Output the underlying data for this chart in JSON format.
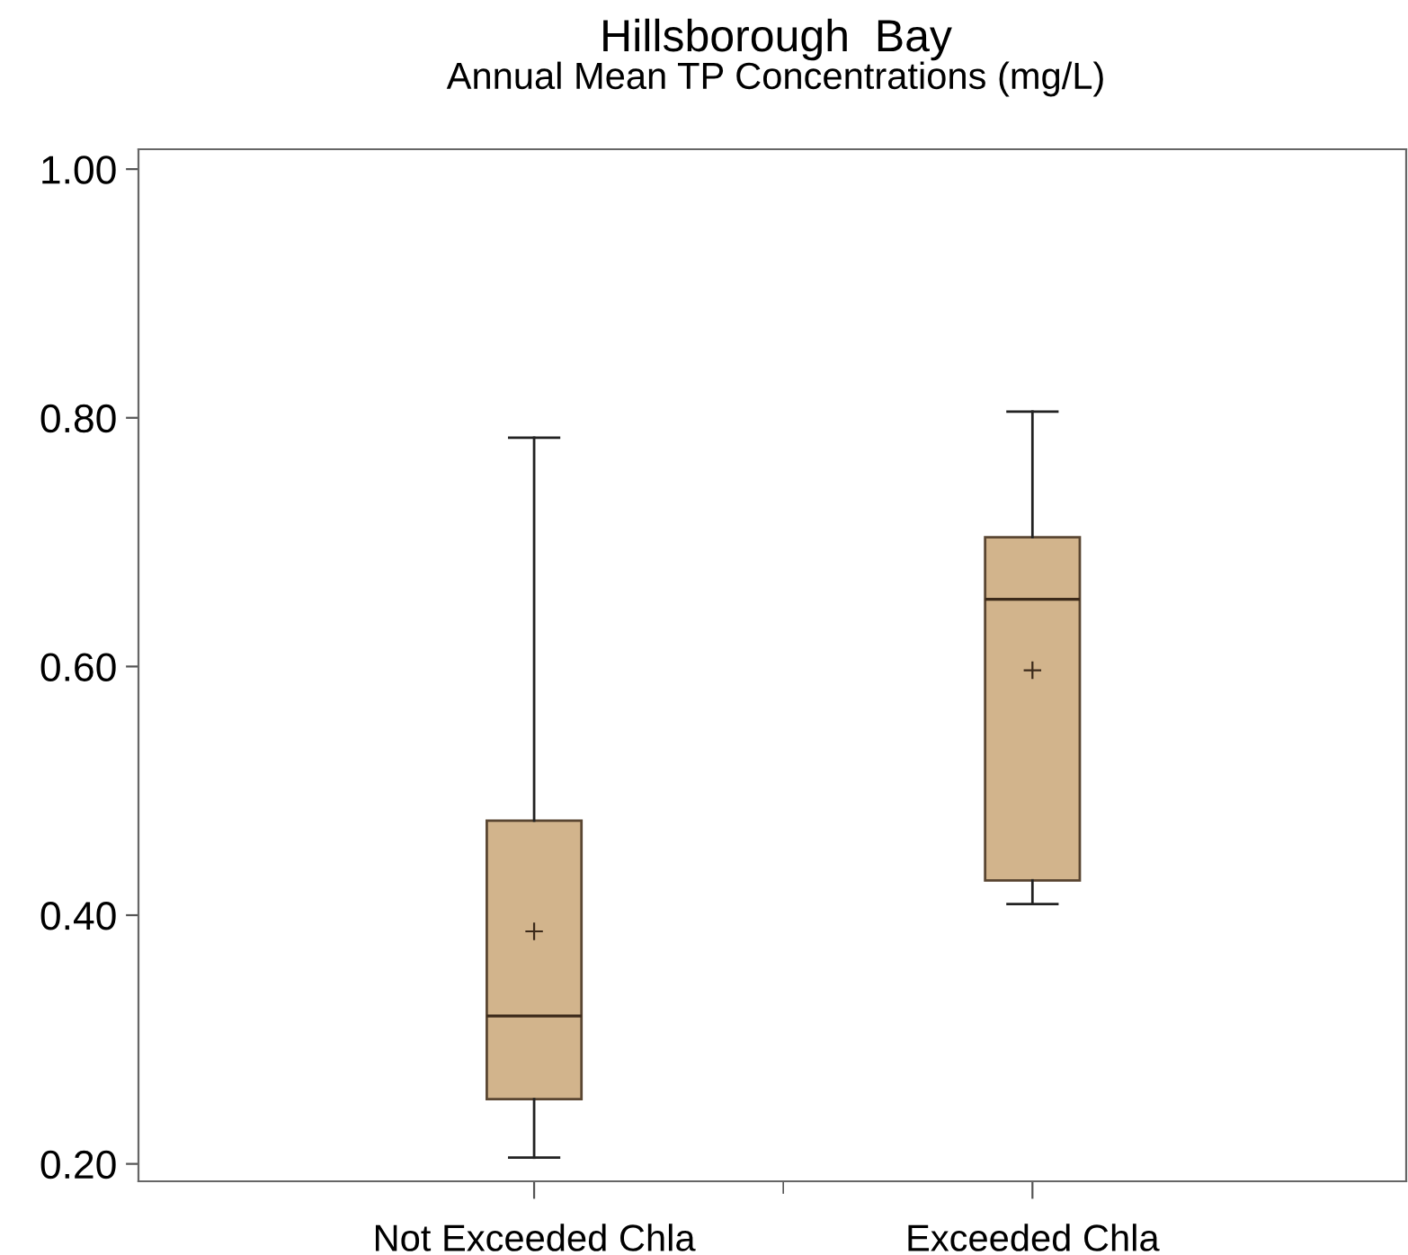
{
  "chart_data": {
    "type": "box",
    "title": "Hillsborough  Bay",
    "subtitle": "Annual Mean TP Concentrations (mg/L)",
    "categories": [
      "Not Exceeded Chla",
      "Exceeded Chla"
    ],
    "series": [
      {
        "color": "#d2b48c",
        "boxes": [
          {
            "low": 0.205,
            "q1": 0.252,
            "median": 0.319,
            "q3": 0.476,
            "high": 0.784,
            "mean": 0.387
          },
          {
            "low": 0.409,
            "q1": 0.428,
            "median": 0.654,
            "q3": 0.704,
            "high": 0.805,
            "mean": 0.597
          }
        ]
      }
    ],
    "ylim": [
      0.186,
      1.016
    ],
    "yticks": [
      {
        "value": 0.2,
        "label": "0.20"
      },
      {
        "value": 0.4,
        "label": "0.40"
      },
      {
        "value": 0.6,
        "label": "0.60"
      },
      {
        "value": 0.8,
        "label": "0.80"
      },
      {
        "value": 1.0,
        "label": "1.00"
      }
    ],
    "grid": false,
    "legend": false
  }
}
